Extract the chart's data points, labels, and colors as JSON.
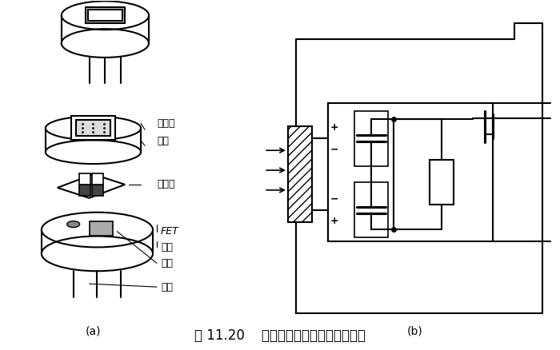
{
  "title": "图 11.20    热释电人体红外传感器的结构",
  "label_a": "(a)",
  "label_b": "(b)",
  "labels": {
    "filter": "滤光片",
    "cap": "管帽",
    "sensor": "敏感元",
    "fet": "FET",
    "socket": "管座",
    "resistor": "高阻",
    "lead": "引线"
  },
  "bg_color": "#ffffff",
  "line_color": "#000000",
  "fig_width": 7.0,
  "fig_height": 4.38
}
